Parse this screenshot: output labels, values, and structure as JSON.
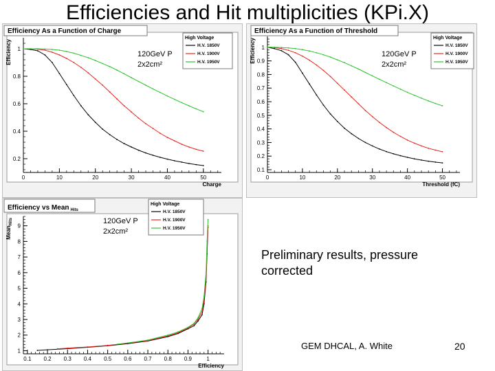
{
  "slide": {
    "title": "Efficiencies and Hit multiplicities (KPi.X)",
    "note": "Preliminary results, pressure corrected",
    "footer": "GEM DHCAL, A. White",
    "page_number": "20"
  },
  "colors": {
    "hv1850": "#000000",
    "hv1900": "#e8241e",
    "hv1950": "#2ec22e",
    "panel_bg": "#f2f2f2",
    "frame_bg": "#ffffff"
  },
  "chart_data": [
    {
      "type": "line",
      "title": "Efficiency As a Function of Charge",
      "xlabel": "Charge",
      "ylabel": "Efficiency",
      "xlim": [
        0,
        55
      ],
      "ylim": [
        0.1,
        1.08
      ],
      "xticks": [
        0,
        10,
        20,
        30,
        40,
        50
      ],
      "yticks": [
        0.2,
        0.4,
        0.6,
        0.8,
        1
      ],
      "annotation": [
        "120GeV P",
        "2x2cm²"
      ],
      "legend": {
        "title": "High Voltage",
        "position": "top-right",
        "entries": [
          "H.V. 1850V",
          "H.V. 1900V",
          "H.V. 1950V"
        ]
      },
      "series": [
        {
          "name": "H.V. 1850V",
          "color": "#000000",
          "x": [
            0,
            2,
            4,
            6,
            8,
            10,
            12,
            14,
            16,
            18,
            20,
            22,
            24,
            26,
            28,
            30,
            32,
            34,
            36,
            38,
            40,
            42,
            44,
            46,
            48,
            50
          ],
          "y": [
            1.0,
            0.995,
            0.985,
            0.955,
            0.9,
            0.82,
            0.74,
            0.66,
            0.585,
            0.52,
            0.465,
            0.415,
            0.375,
            0.34,
            0.31,
            0.285,
            0.262,
            0.242,
            0.225,
            0.21,
            0.197,
            0.185,
            0.175,
            0.165,
            0.157,
            0.15
          ]
        },
        {
          "name": "H.V. 1900V",
          "color": "#e8241e",
          "x": [
            0,
            2,
            4,
            6,
            8,
            10,
            12,
            14,
            16,
            18,
            20,
            22,
            24,
            26,
            28,
            30,
            32,
            34,
            36,
            38,
            40,
            42,
            44,
            46,
            48,
            50
          ],
          "y": [
            1.0,
            1.0,
            0.997,
            0.99,
            0.975,
            0.955,
            0.93,
            0.9,
            0.865,
            0.825,
            0.78,
            0.735,
            0.685,
            0.635,
            0.585,
            0.54,
            0.495,
            0.455,
            0.42,
            0.385,
            0.355,
            0.33,
            0.305,
            0.285,
            0.268,
            0.255
          ]
        },
        {
          "name": "H.V. 1950V",
          "color": "#2ec22e",
          "x": [
            0,
            2,
            4,
            6,
            8,
            10,
            12,
            14,
            16,
            18,
            20,
            22,
            24,
            26,
            28,
            30,
            32,
            34,
            36,
            38,
            40,
            42,
            44,
            46,
            48,
            50
          ],
          "y": [
            1.0,
            1.0,
            1.0,
            0.998,
            0.995,
            0.99,
            0.98,
            0.968,
            0.952,
            0.935,
            0.915,
            0.893,
            0.87,
            0.845,
            0.818,
            0.79,
            0.762,
            0.735,
            0.708,
            0.682,
            0.656,
            0.632,
            0.608,
            0.585,
            0.563,
            0.542
          ]
        }
      ]
    },
    {
      "type": "line",
      "title": "Efficiency As a Function of Threshold",
      "xlabel": "Threshold (fC)",
      "ylabel": "Efficiency",
      "xlim": [
        0,
        55
      ],
      "ylim": [
        0.08,
        1.08
      ],
      "xticks": [
        0,
        10,
        20,
        30,
        40,
        50
      ],
      "yticks": [
        0.1,
        0.2,
        0.3,
        0.4,
        0.5,
        0.6,
        0.7,
        0.8,
        0.9,
        1
      ],
      "annotation": [
        "120GeV P",
        "2x2cm²"
      ],
      "legend": {
        "title": "High Voltage",
        "position": "top-right",
        "entries": [
          "H.V. 1850V",
          "H.V. 1900V",
          "H.V. 1950V"
        ]
      },
      "series": [
        {
          "name": "H.V. 1850V",
          "color": "#000000",
          "x": [
            0,
            2,
            4,
            6,
            8,
            10,
            12,
            14,
            16,
            18,
            20,
            22,
            24,
            26,
            28,
            30,
            32,
            34,
            36,
            38,
            40,
            42,
            44,
            46,
            48,
            50
          ],
          "y": [
            1.0,
            0.99,
            0.975,
            0.945,
            0.89,
            0.81,
            0.73,
            0.65,
            0.575,
            0.51,
            0.455,
            0.405,
            0.365,
            0.33,
            0.3,
            0.275,
            0.252,
            0.233,
            0.217,
            0.203,
            0.191,
            0.18,
            0.171,
            0.163,
            0.156,
            0.15
          ]
        },
        {
          "name": "H.V. 1900V",
          "color": "#e8241e",
          "x": [
            0,
            2,
            4,
            6,
            8,
            10,
            12,
            14,
            16,
            18,
            20,
            22,
            24,
            26,
            28,
            30,
            32,
            34,
            36,
            38,
            40,
            42,
            44,
            46,
            48,
            50
          ],
          "y": [
            1.0,
            0.998,
            0.99,
            0.978,
            0.96,
            0.935,
            0.905,
            0.87,
            0.83,
            0.785,
            0.735,
            0.685,
            0.635,
            0.585,
            0.535,
            0.49,
            0.448,
            0.41,
            0.375,
            0.345,
            0.318,
            0.295,
            0.275,
            0.258,
            0.244,
            0.232
          ]
        },
        {
          "name": "H.V. 1950V",
          "color": "#2ec22e",
          "x": [
            0,
            2,
            4,
            6,
            8,
            10,
            12,
            14,
            16,
            18,
            20,
            22,
            24,
            26,
            28,
            30,
            32,
            34,
            36,
            38,
            40,
            42,
            44,
            46,
            48,
            50
          ],
          "y": [
            1.0,
            1.0,
            0.998,
            0.995,
            0.99,
            0.983,
            0.973,
            0.96,
            0.945,
            0.928,
            0.908,
            0.887,
            0.864,
            0.84,
            0.815,
            0.79,
            0.765,
            0.74,
            0.716,
            0.692,
            0.669,
            0.647,
            0.626,
            0.606,
            0.587,
            0.57
          ]
        }
      ]
    },
    {
      "type": "line",
      "title": "Efficiency vs Mean",
      "title_subscript": "Hits",
      "xlabel": "Efficiency",
      "ylabel": "Mean",
      "ylabel_subscript": "Hits",
      "xlim": [
        0.08,
        1.08
      ],
      "ylim": [
        0.8,
        9.6
      ],
      "xticks": [
        0.1,
        0.2,
        0.3,
        0.4,
        0.5,
        0.6,
        0.7,
        0.8,
        0.9,
        1
      ],
      "yticks": [
        1,
        2,
        3,
        4,
        5,
        6,
        7,
        8,
        9
      ],
      "annotation": [
        "120GeV P",
        "2x2cm²"
      ],
      "legend": {
        "title": "High Voltage",
        "position": "top-right",
        "entries": [
          "H.V. 1850V",
          "H.V. 1900V",
          "H.V. 1950V"
        ]
      },
      "series": [
        {
          "name": "H.V. 1850V",
          "color": "#000000",
          "x": [
            0.15,
            0.2,
            0.3,
            0.4,
            0.5,
            0.6,
            0.7,
            0.8,
            0.85,
            0.9,
            0.93,
            0.95,
            0.97,
            0.98,
            0.99,
            0.995,
            1.0
          ],
          "y": [
            1.02,
            1.06,
            1.13,
            1.22,
            1.32,
            1.45,
            1.62,
            1.9,
            2.1,
            2.4,
            2.6,
            2.9,
            3.3,
            4.0,
            5.4,
            7.2,
            8.9
          ]
        },
        {
          "name": "H.V. 1900V",
          "color": "#e8241e",
          "x": [
            0.25,
            0.3,
            0.4,
            0.5,
            0.6,
            0.7,
            0.8,
            0.85,
            0.9,
            0.93,
            0.95,
            0.97,
            0.98,
            0.99,
            0.995,
            1.0
          ],
          "y": [
            1.12,
            1.16,
            1.24,
            1.34,
            1.48,
            1.65,
            1.95,
            2.15,
            2.45,
            2.7,
            3.0,
            3.5,
            4.2,
            5.6,
            7.5,
            9.0
          ]
        },
        {
          "name": "H.V. 1950V",
          "color": "#2ec22e",
          "x": [
            0.55,
            0.6,
            0.7,
            0.8,
            0.85,
            0.9,
            0.93,
            0.95,
            0.97,
            0.98,
            0.99,
            0.995,
            1.0
          ],
          "y": [
            1.42,
            1.5,
            1.68,
            2.0,
            2.2,
            2.5,
            2.75,
            3.1,
            3.7,
            4.5,
            6.0,
            8.0,
            9.4
          ]
        }
      ]
    }
  ]
}
